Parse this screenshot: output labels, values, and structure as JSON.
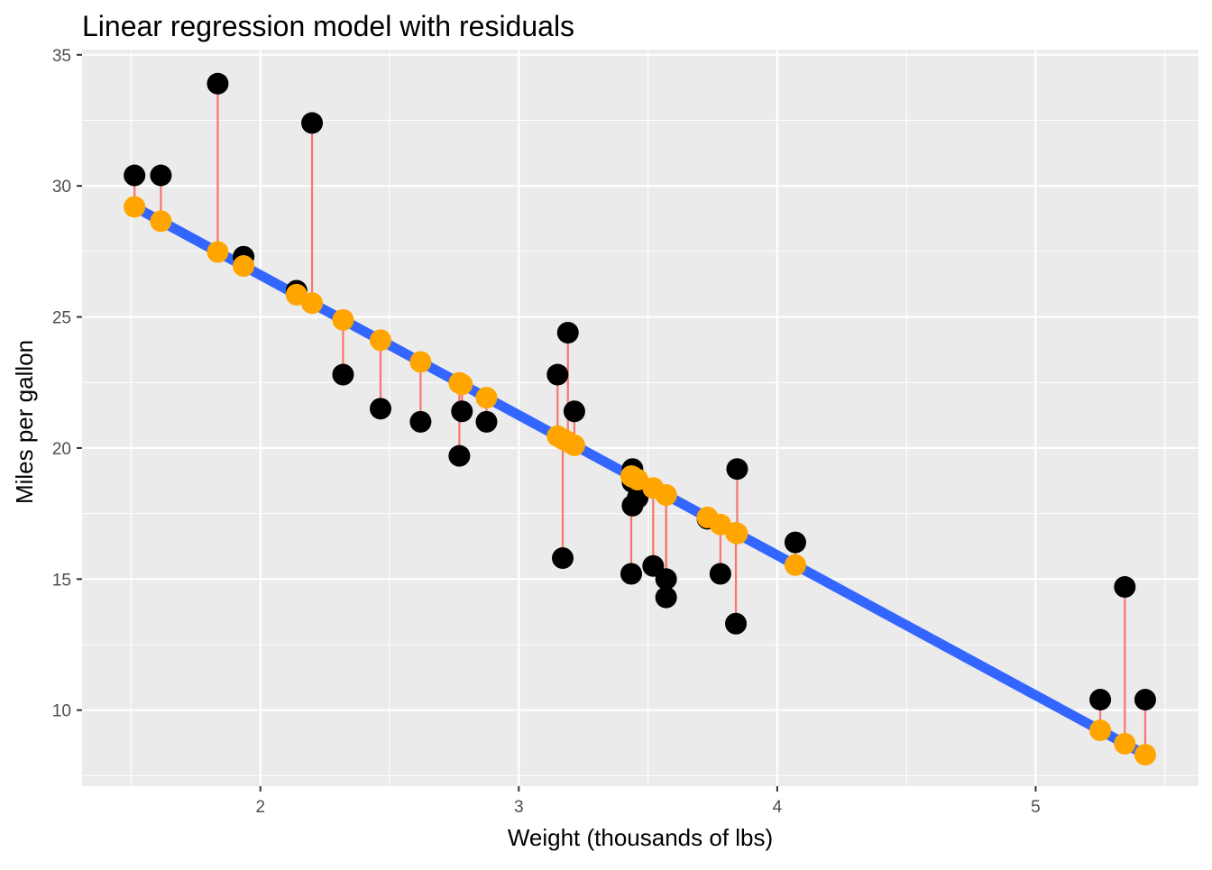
{
  "chart_data": {
    "type": "scatter",
    "title": "Linear regression model with residuals",
    "xlabel": "Weight (thousands of lbs)",
    "ylabel": "Miles per gallon",
    "xlim": [
      1.31,
      5.63
    ],
    "ylim": [
      7.1,
      35.2
    ],
    "x_ticks": [
      2,
      3,
      4,
      5
    ],
    "y_ticks": [
      10,
      15,
      20,
      25,
      30,
      35
    ],
    "grid": true,
    "legend": "none",
    "regression": {
      "intercept": 37.285,
      "slope": -5.344
    },
    "colors": {
      "panel": "#ebebeb",
      "grid": "#ffffff",
      "observed": "#000000",
      "fitted": "#ffa500",
      "residual": "#f8766d",
      "line": "#3366ff"
    },
    "series": [
      {
        "x": [
          2.62,
          2.875,
          2.32,
          3.215,
          3.44,
          3.46,
          3.57,
          3.19,
          3.15,
          3.44,
          3.44,
          4.07,
          3.73,
          3.78,
          5.25,
          5.424,
          5.345,
          2.2,
          1.615,
          1.835,
          2.465,
          3.52,
          3.435,
          3.84,
          3.845,
          1.935,
          2.14,
          1.513,
          3.17,
          2.77,
          3.57,
          2.78
        ],
        "y": [
          21.0,
          21.0,
          22.8,
          21.4,
          18.7,
          18.1,
          14.3,
          24.4,
          22.8,
          19.2,
          17.8,
          16.4,
          17.3,
          15.2,
          10.4,
          10.4,
          14.7,
          32.4,
          30.4,
          33.9,
          21.5,
          15.5,
          15.2,
          13.3,
          19.2,
          27.3,
          26.0,
          30.4,
          15.8,
          19.7,
          15.0,
          21.4
        ]
      }
    ]
  }
}
